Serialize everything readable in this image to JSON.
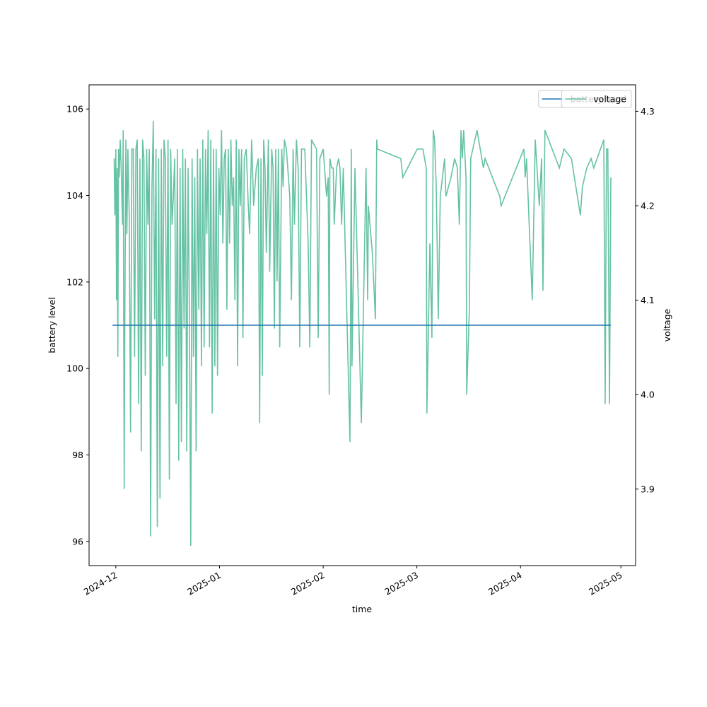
{
  "chart_data": {
    "type": "line",
    "xlabel": "time",
    "ylabel": "battery level",
    "y2label": "voltage",
    "xlim": [
      -8.0,
      155.4
    ],
    "xticks": [
      {
        "value": 0,
        "label": "2024-12"
      },
      {
        "value": 31,
        "label": "2025-01"
      },
      {
        "value": 62,
        "label": "2025-02"
      },
      {
        "value": 90,
        "label": "2025-03"
      },
      {
        "value": 121,
        "label": "2025-04"
      },
      {
        "value": 151,
        "label": "2025-05"
      }
    ],
    "ylim": [
      95.44,
      106.56
    ],
    "yticks": [
      96,
      98,
      100,
      102,
      104,
      106
    ],
    "y2lim": [
      3.819,
      4.328
    ],
    "y2ticks": [
      3.9,
      {
        "value": 4.0,
        "label": "4.0"
      },
      4.1,
      4.2,
      4.3
    ],
    "legend": "upper right",
    "series": [
      {
        "name": "battery level",
        "color": "#1f77b4",
        "axis": "y",
        "x": [
          -1,
          148
        ],
        "values": [
          101,
          101
        ]
      },
      {
        "name": "voltage",
        "color": "#66c2a5",
        "axis": "y2",
        "x": [
          -0.5,
          -0.3,
          0,
          0.2,
          0.4,
          0.6,
          0.8,
          1,
          1.3,
          1.6,
          2,
          2.2,
          2.5,
          2.7,
          3,
          3.3,
          3.6,
          4,
          4.4,
          4.8,
          5.2,
          5.6,
          6,
          6.4,
          6.8,
          7.2,
          7.6,
          8,
          8.4,
          8.8,
          9.2,
          9.6,
          10,
          10.4,
          10.8,
          11.2,
          11.6,
          12,
          12.4,
          12.8,
          13.2,
          13.6,
          14,
          14.4,
          14.8,
          15.2,
          15.6,
          16,
          16.4,
          16.8,
          17.2,
          17.6,
          18,
          18.4,
          18.8,
          19.2,
          19.6,
          20,
          20.4,
          20.8,
          21.2,
          21.6,
          22,
          22.4,
          22.8,
          23.2,
          23.6,
          24,
          24.4,
          24.8,
          25.2,
          25.6,
          26,
          26.4,
          26.8,
          27.2,
          27.6,
          28,
          28.4,
          28.8,
          29.2,
          29.6,
          30,
          30.4,
          30.8,
          31.2,
          31.6,
          32,
          32.4,
          32.8,
          33.2,
          33.6,
          34,
          34.4,
          34.8,
          35.2,
          35.6,
          36,
          36.4,
          36.8,
          37.2,
          37.6,
          38,
          38.4,
          39,
          39.6,
          40,
          40.6,
          41.2,
          42,
          42.6,
          43,
          43.4,
          43.8,
          44.2,
          44.6,
          45,
          45.6,
          46,
          46.6,
          47,
          47.4,
          47.8,
          48.2,
          48.6,
          49,
          49.6,
          50,
          50.4,
          51,
          52,
          52.5,
          53,
          53.4,
          54,
          54.5,
          55,
          55.5,
          56.5,
          57.5,
          58,
          58.5,
          60,
          60.5,
          61,
          62,
          63,
          63.5,
          63.8,
          64,
          64.5,
          65,
          65.3,
          66,
          66.6,
          67,
          67.5,
          68,
          70.0,
          70.4,
          70.6,
          71.5,
          73.4,
          74.8,
          75.3,
          75.5,
          76.7,
          77.6,
          78.0,
          78.2,
          85.2,
          85.8,
          90.1,
          91.8,
          92.8,
          93.0,
          93.9,
          94.5,
          94.9,
          95.3,
          95.8,
          96.4,
          97.0,
          98.3,
          98.7,
          100.2,
          101.3,
          102.1,
          102.7,
          103.2,
          103.6,
          104.0,
          104.7,
          104.9,
          105.7,
          106.1,
          108.0,
          109.9,
          110.4,
          114.8,
          115.2,
          122.0,
          122.4,
          122.8,
          124.5,
          125.4,
          126.6,
          127.3,
          127.7,
          128.3,
          132.6,
          134.0,
          136.2,
          138.9,
          139.5,
          140.8,
          142.1,
          142.9,
          145.9,
          146.3,
          146.7,
          147.1,
          147.6,
          148.0
        ],
        "values": [
          4.25,
          4.19,
          4.26,
          4.1,
          4.24,
          4.04,
          4.26,
          4.23,
          4.27,
          4.24,
          4.18,
          4.28,
          3.9,
          4.09,
          4.27,
          4.17,
          4.26,
          4.19,
          3.96,
          4.26,
          4.26,
          4.04,
          4.26,
          4.27,
          3.99,
          4.25,
          3.94,
          4.27,
          4.25,
          4.02,
          4.26,
          4.18,
          4.26,
          3.85,
          4.22,
          4.29,
          4.08,
          4.26,
          3.86,
          4.25,
          3.89,
          4.26,
          4.03,
          4.27,
          4.25,
          4.04,
          4.27,
          3.91,
          4.26,
          4.18,
          4.21,
          4.25,
          3.99,
          4.26,
          3.93,
          4.24,
          3.95,
          4.26,
          4.07,
          4.25,
          3.94,
          4.24,
          4.08,
          3.84,
          4.25,
          4.04,
          4.23,
          3.94,
          4.26,
          4.09,
          4.25,
          4.03,
          4.27,
          4.05,
          4.26,
          4.17,
          4.28,
          4.05,
          4.27,
          3.98,
          4.26,
          4.03,
          4.26,
          4.02,
          4.24,
          4.19,
          4.28,
          4.16,
          4.25,
          4.26,
          4.09,
          4.26,
          4.16,
          4.27,
          4.2,
          4.23,
          4.1,
          4.27,
          4.03,
          4.26,
          4.2,
          4.26,
          4.06,
          4.25,
          4.26,
          4.2,
          4.17,
          4.27,
          4.2,
          4.24,
          4.25,
          3.97,
          4.25,
          4.02,
          4.27,
          4.24,
          4.15,
          4.27,
          4.13,
          4.26,
          4.24,
          4.07,
          4.26,
          4.12,
          4.26,
          4.05,
          4.26,
          4.22,
          4.27,
          4.26,
          4.21,
          4.1,
          4.26,
          4.18,
          4.27,
          4.24,
          4.05,
          4.26,
          4.26,
          4.16,
          4.05,
          4.27,
          4.26,
          4.06,
          4.25,
          4.26,
          4.21,
          4.23,
          4.0,
          4.25,
          4.24,
          4.24,
          4.18,
          4.24,
          4.25,
          4.24,
          4.18,
          4.24,
          3.95,
          4.26,
          4.03,
          4.24,
          3.97,
          4.24,
          4.1,
          4.2,
          4.15,
          4.08,
          4.27,
          4.26,
          4.25,
          4.23,
          4.26,
          4.26,
          4.24,
          3.98,
          4.16,
          4.06,
          4.28,
          4.27,
          4.22,
          4.08,
          4.21,
          4.25,
          4.21,
          4.23,
          4.25,
          4.24,
          4.18,
          4.28,
          4.25,
          4.28,
          4.23,
          4.0,
          4.09,
          4.25,
          4.28,
          4.24,
          4.25,
          4.21,
          4.2,
          4.26,
          4.23,
          4.25,
          4.1,
          4.27,
          4.2,
          4.25,
          4.11,
          4.28,
          4.24,
          4.26,
          4.25,
          4.19,
          4.22,
          4.24,
          4.25,
          4.24,
          4.27,
          3.99,
          4.26,
          4.26,
          3.99,
          4.23
        ]
      }
    ]
  }
}
